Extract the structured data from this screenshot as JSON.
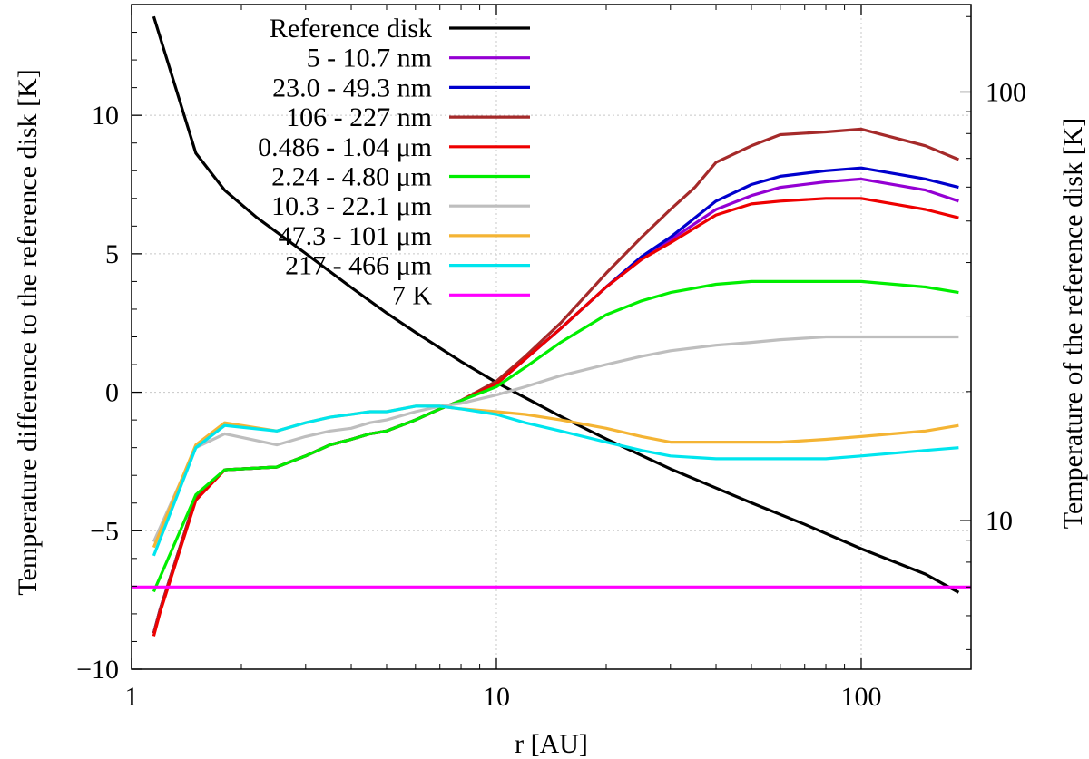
{
  "chart_data": {
    "type": "line",
    "x_scale": "log",
    "xlim": [
      1,
      200
    ],
    "ylim": [
      -10,
      14
    ],
    "y2_scale": "log",
    "y2lim": [
      4.5,
      160
    ],
    "xlabel": "r [AU]",
    "ylabel": "Temperature difference to the reference disk [K]",
    "y2label": "Temperature of the reference disk [K]",
    "x_ticks": [
      {
        "v": 1,
        "label": "1"
      },
      {
        "v": 10,
        "label": "10"
      },
      {
        "v": 100,
        "label": "100"
      }
    ],
    "y_ticks": [
      {
        "v": -10,
        "label": "−10"
      },
      {
        "v": -5,
        "label": "−5"
      },
      {
        "v": 0,
        "label": "0"
      },
      {
        "v": 5,
        "label": "5"
      },
      {
        "v": 10,
        "label": "10"
      }
    ],
    "y2_ticks": [
      {
        "v": 10,
        "label": "10"
      },
      {
        "v": 100,
        "label": "100"
      }
    ],
    "grid": true,
    "legend_position": "top-left",
    "series": [
      {
        "name": "Reference disk",
        "color": "#000000",
        "axis": "right",
        "x": [
          1.15,
          1.5,
          1.8,
          2.2,
          3,
          4,
          5,
          6,
          8,
          10,
          15,
          20,
          30,
          50,
          70,
          100,
          150,
          185
        ],
        "y": [
          150,
          72,
          59,
          51,
          42,
          35,
          30.5,
          27.5,
          23.5,
          21,
          17.5,
          15.5,
          13.2,
          11,
          9.8,
          8.6,
          7.5,
          6.8
        ]
      },
      {
        "name": "5 - 10.7 nm",
        "color": "#9400d3",
        "axis": "left",
        "x": [
          1.15,
          1.2,
          1.5,
          1.8,
          2.5,
          3.0,
          3.5,
          4.0,
          4.5,
          5.0,
          6.0,
          7.0,
          8.0,
          10,
          12,
          15,
          20,
          25,
          30,
          40,
          50,
          60,
          80,
          100,
          150,
          185
        ],
        "y": [
          -8.7,
          -7.8,
          -3.8,
          -2.8,
          -2.7,
          -2.3,
          -1.9,
          -1.7,
          -1.5,
          -1.4,
          -1.0,
          -0.6,
          -0.3,
          0.3,
          1.2,
          2.3,
          3.8,
          4.8,
          5.5,
          6.6,
          7.1,
          7.4,
          7.6,
          7.7,
          7.3,
          6.9
        ]
      },
      {
        "name": "23.0 - 49.3 nm",
        "color": "#0000cd",
        "axis": "left",
        "x": [
          1.15,
          1.2,
          1.5,
          1.8,
          2.5,
          3.0,
          3.5,
          4.0,
          4.5,
          5.0,
          6.0,
          7.0,
          8.0,
          10,
          12,
          15,
          20,
          25,
          30,
          40,
          50,
          60,
          80,
          100,
          150,
          185
        ],
        "y": [
          -8.7,
          -7.8,
          -3.8,
          -2.8,
          -2.7,
          -2.3,
          -1.9,
          -1.7,
          -1.5,
          -1.4,
          -1.0,
          -0.6,
          -0.3,
          0.3,
          1.2,
          2.3,
          3.8,
          4.9,
          5.6,
          6.9,
          7.5,
          7.8,
          8.0,
          8.1,
          7.7,
          7.4
        ]
      },
      {
        "name": "106 - 227 nm",
        "color": "#a52a2a",
        "axis": "left",
        "x": [
          1.15,
          1.2,
          1.5,
          1.8,
          2.5,
          3.0,
          3.5,
          4.0,
          4.5,
          5.0,
          6.0,
          7.0,
          8.0,
          10,
          12,
          15,
          20,
          25,
          30,
          35,
          40,
          50,
          60,
          80,
          100,
          150,
          185
        ],
        "y": [
          -8.7,
          -7.8,
          -3.8,
          -2.8,
          -2.7,
          -2.3,
          -1.9,
          -1.7,
          -1.5,
          -1.4,
          -1.0,
          -0.6,
          -0.3,
          0.4,
          1.3,
          2.5,
          4.3,
          5.6,
          6.6,
          7.4,
          8.3,
          8.9,
          9.3,
          9.4,
          9.5,
          8.9,
          8.4
        ]
      },
      {
        "name": "0.486 - 1.04 μm",
        "color": "#ee0000",
        "axis": "left",
        "x": [
          1.15,
          1.2,
          1.5,
          1.8,
          2.5,
          3.0,
          3.5,
          4.0,
          4.5,
          5.0,
          6.0,
          7.0,
          8.0,
          10,
          12,
          15,
          20,
          25,
          30,
          40,
          50,
          60,
          80,
          100,
          150,
          185
        ],
        "y": [
          -8.8,
          -7.9,
          -3.9,
          -2.8,
          -2.7,
          -2.3,
          -1.9,
          -1.7,
          -1.5,
          -1.4,
          -1.0,
          -0.6,
          -0.3,
          0.3,
          1.2,
          2.3,
          3.8,
          4.8,
          5.4,
          6.4,
          6.8,
          6.9,
          7.0,
          7.0,
          6.6,
          6.3
        ]
      },
      {
        "name": "2.24 - 4.80 μm",
        "color": "#00ee00",
        "axis": "left",
        "x": [
          1.15,
          1.5,
          1.8,
          2.5,
          3.0,
          3.5,
          4.0,
          4.5,
          5.0,
          6.0,
          7.0,
          8.0,
          10,
          12,
          15,
          20,
          25,
          30,
          40,
          50,
          60,
          80,
          100,
          150,
          185
        ],
        "y": [
          -7.2,
          -3.7,
          -2.8,
          -2.7,
          -2.3,
          -1.9,
          -1.7,
          -1.5,
          -1.4,
          -1.0,
          -0.6,
          -0.3,
          0.2,
          0.9,
          1.8,
          2.8,
          3.3,
          3.6,
          3.9,
          4.0,
          4.0,
          4.0,
          4.0,
          3.8,
          3.6
        ]
      },
      {
        "name": "10.3 - 22.1 μm",
        "color": "#bebebe",
        "axis": "left",
        "x": [
          1.15,
          1.5,
          1.8,
          2.5,
          3.0,
          3.5,
          4.0,
          4.5,
          5.0,
          6.0,
          7.0,
          8.0,
          10,
          12,
          15,
          20,
          25,
          30,
          40,
          50,
          60,
          80,
          100,
          150,
          185
        ],
        "y": [
          -5.4,
          -2.0,
          -1.5,
          -1.9,
          -1.6,
          -1.4,
          -1.3,
          -1.1,
          -1.0,
          -0.7,
          -0.5,
          -0.4,
          -0.1,
          0.2,
          0.6,
          1.0,
          1.3,
          1.5,
          1.7,
          1.8,
          1.9,
          2.0,
          2.0,
          2.0,
          2.0
        ]
      },
      {
        "name": "47.3 - 101 μm",
        "color": "#f4b434",
        "axis": "left",
        "x": [
          1.15,
          1.5,
          1.8,
          2.5,
          3.0,
          3.5,
          4.0,
          4.5,
          5.0,
          6.0,
          7.0,
          8.0,
          10,
          12,
          15,
          20,
          25,
          30,
          40,
          50,
          60,
          80,
          100,
          150,
          185
        ],
        "y": [
          -5.6,
          -1.9,
          -1.1,
          -1.4,
          -1.1,
          -0.9,
          -0.8,
          -0.7,
          -0.7,
          -0.5,
          -0.5,
          -0.6,
          -0.7,
          -0.8,
          -1.0,
          -1.3,
          -1.6,
          -1.8,
          -1.8,
          -1.8,
          -1.8,
          -1.7,
          -1.6,
          -1.4,
          -1.2
        ]
      },
      {
        "name": "217 - 466 μm",
        "color": "#00e5ee",
        "axis": "left",
        "x": [
          1.15,
          1.5,
          1.8,
          2.5,
          3.0,
          3.5,
          4.0,
          4.5,
          5.0,
          6.0,
          7.0,
          8.0,
          10,
          12,
          15,
          20,
          25,
          30,
          40,
          50,
          60,
          80,
          100,
          150,
          185
        ],
        "y": [
          -5.9,
          -2.0,
          -1.2,
          -1.4,
          -1.1,
          -0.9,
          -0.8,
          -0.7,
          -0.7,
          -0.5,
          -0.5,
          -0.6,
          -0.8,
          -1.1,
          -1.4,
          -1.8,
          -2.1,
          -2.3,
          -2.4,
          -2.4,
          -2.4,
          -2.4,
          -2.3,
          -2.1,
          -2.0
        ]
      },
      {
        "name": "7 K",
        "color": "#ff00ff",
        "axis": "right",
        "x": [
          1,
          200
        ],
        "y": [
          7,
          7
        ]
      }
    ]
  }
}
